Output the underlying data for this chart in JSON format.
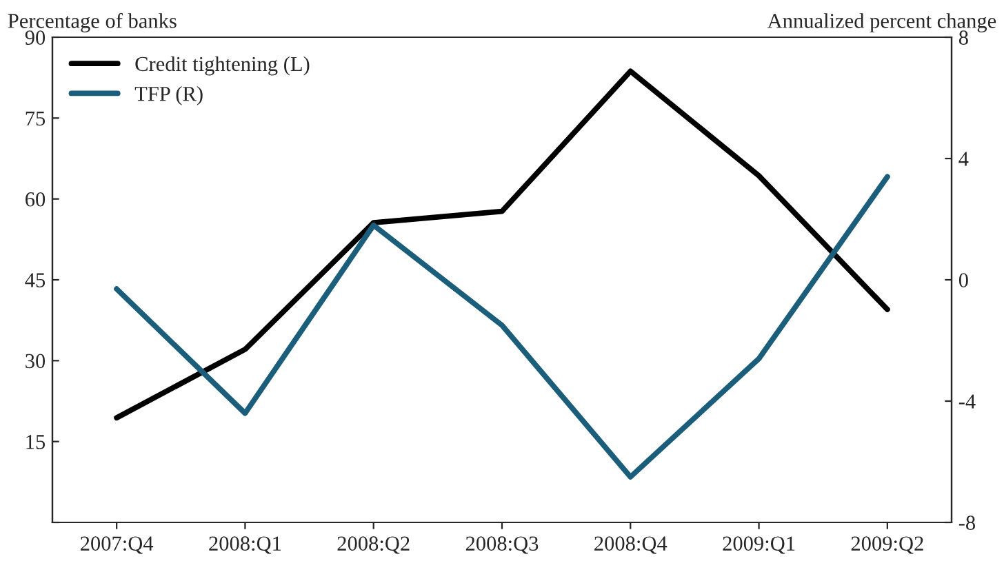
{
  "chart_data": {
    "type": "line",
    "categories": [
      "2007:Q4",
      "2008:Q1",
      "2008:Q2",
      "2008:Q3",
      "2008:Q4",
      "2009:Q1",
      "2009:Q2"
    ],
    "series": [
      {
        "name": "Credit tightening (L)",
        "color": "#000000",
        "values": [
          19.4,
          32.1,
          55.6,
          57.7,
          83.7,
          64.3,
          39.5
        ]
      },
      {
        "name": "TFP (R)",
        "color": "#1b5e7b",
        "axis": "y2",
        "values": [
          -0.3,
          -4.4,
          1.8,
          -1.5,
          -6.5,
          -2.6,
          3.4
        ]
      }
    ],
    "ylabel": "Percentage of banks",
    "y2label": "Annualized percent change",
    "ylim": [
      0,
      90
    ],
    "yticks": [
      {
        "value": 0,
        "label": null
      },
      15,
      30,
      45,
      60,
      75,
      90
    ],
    "y2lim": [
      -8,
      8
    ],
    "y2ticks": [
      -8,
      -4,
      0,
      4,
      8
    ],
    "legend": "top left",
    "grid": false,
    "marker": "none",
    "line_style": "solid"
  }
}
